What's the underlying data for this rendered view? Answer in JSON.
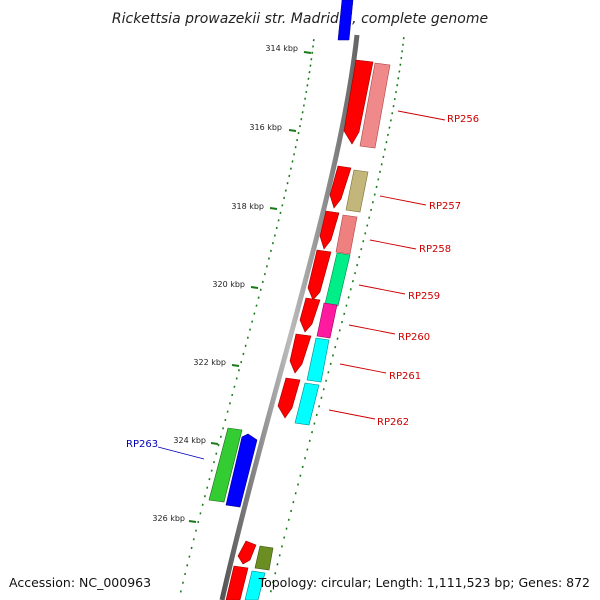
{
  "title": "Rickettsia prowazekii str. Madrid E, complete genome",
  "footer": {
    "accession": "Accession: NC_000963",
    "stats": "Topology: circular; Length: 1,111,523 bp; Genes: 872"
  },
  "ruler_ticks": [
    "314 kbp",
    "316 kbp",
    "318 kbp",
    "320 kbp",
    "322 kbp",
    "324 kbp",
    "326 kbp"
  ],
  "gene_labels": [
    "RP256",
    "RP257",
    "RP258",
    "RP259",
    "RP260",
    "RP261",
    "RP262",
    "RP263"
  ],
  "colors": {
    "forward_cog": "#ff0000",
    "label_red": "#cc0000",
    "label_blue": "#0000bb",
    "ruler_green": "#1a7a1a",
    "backbone": "#888888"
  }
}
